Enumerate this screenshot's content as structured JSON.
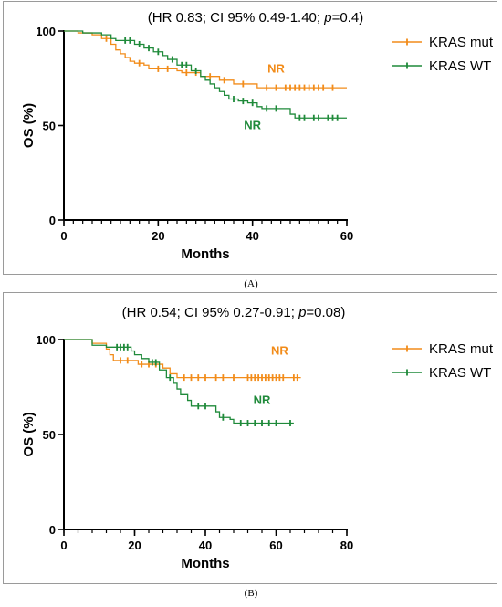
{
  "chart_data": [
    {
      "type": "line",
      "panel": "A",
      "caption": "(A)",
      "title_prefix": "(HR 0.83; CI 95% 0.49-1.40; ",
      "title_p_symbol": "p",
      "title_suffix": "=0.4)",
      "xlabel": "Months",
      "ylabel": "OS (%)",
      "xlim": [
        0,
        60
      ],
      "ylim": [
        0,
        100
      ],
      "xticks": [
        0,
        20,
        40,
        60
      ],
      "yticks": [
        0,
        50,
        100
      ],
      "x_minor_step": 2,
      "legend_position": "top-right",
      "series": [
        {
          "name": "KRAS mut",
          "color": "#F28C1A",
          "label": "NR",
          "label_at": [
            45,
            78
          ],
          "steps": [
            [
              0,
              100
            ],
            [
              3,
              99
            ],
            [
              6,
              98
            ],
            [
              8,
              96
            ],
            [
              10,
              93
            ],
            [
              11,
              90
            ],
            [
              12,
              88
            ],
            [
              13,
              86
            ],
            [
              14,
              84
            ],
            [
              15,
              83
            ],
            [
              17,
              82
            ],
            [
              18,
              80
            ],
            [
              24,
              79
            ],
            [
              25,
              78
            ],
            [
              29,
              76
            ],
            [
              33,
              74
            ],
            [
              36,
              72
            ],
            [
              41,
              70
            ],
            [
              60,
              70
            ]
          ],
          "censor": [
            9,
            16,
            20,
            22,
            26,
            28,
            31,
            34,
            38,
            43,
            45,
            47,
            48,
            49,
            50,
            51,
            52,
            53,
            54,
            55,
            57
          ]
        },
        {
          "name": "KRAS WT",
          "color": "#1F8A3A",
          "label": "NR",
          "label_at": [
            40,
            48
          ],
          "steps": [
            [
              0,
              100
            ],
            [
              4,
              99
            ],
            [
              8,
              98
            ],
            [
              10,
              96
            ],
            [
              11,
              95
            ],
            [
              15,
              93
            ],
            [
              17,
              91
            ],
            [
              19,
              89
            ],
            [
              21,
              87
            ],
            [
              22,
              85
            ],
            [
              24,
              82
            ],
            [
              27,
              79
            ],
            [
              29,
              76
            ],
            [
              30,
              74
            ],
            [
              31,
              72
            ],
            [
              32,
              70
            ],
            [
              33,
              68
            ],
            [
              34,
              66
            ],
            [
              35,
              64
            ],
            [
              37,
              63
            ],
            [
              39,
              62
            ],
            [
              41,
              60
            ],
            [
              42,
              59
            ],
            [
              48,
              56
            ],
            [
              49,
              54
            ],
            [
              60,
              54
            ]
          ],
          "censor": [
            13,
            14,
            16,
            18,
            20,
            23,
            25,
            26,
            28,
            36,
            38,
            40,
            43,
            45,
            50,
            51,
            53,
            54,
            56,
            57,
            58
          ]
        }
      ]
    },
    {
      "type": "line",
      "panel": "B",
      "caption": "(B)",
      "title_prefix": "(HR 0.54; CI 95% 0.27-0.91; ",
      "title_p_symbol": "p",
      "title_suffix": "=0.08)",
      "xlabel": "Months",
      "ylabel": "OS (%)",
      "xlim": [
        0,
        80
      ],
      "ylim": [
        0,
        100
      ],
      "xticks": [
        0,
        20,
        40,
        60,
        80
      ],
      "yticks": [
        0,
        50,
        100
      ],
      "x_minor_step": 4,
      "legend_position": "top-right",
      "series": [
        {
          "name": "KRAS mut",
          "color": "#F28C1A",
          "label": "NR",
          "label_at": [
            61,
            92
          ],
          "steps": [
            [
              0,
              100
            ],
            [
              8,
              98
            ],
            [
              12,
              95
            ],
            [
              13,
              92
            ],
            [
              14,
              89
            ],
            [
              20,
              89
            ],
            [
              21,
              87
            ],
            [
              28,
              85
            ],
            [
              30,
              82
            ],
            [
              32,
              80
            ],
            [
              48,
              80
            ],
            [
              50,
              80
            ],
            [
              67,
              80
            ]
          ],
          "censor": [
            16,
            18,
            22,
            24,
            26,
            34,
            36,
            38,
            40,
            43,
            45,
            48,
            52,
            53,
            54,
            55,
            56,
            57,
            58,
            59,
            60,
            61,
            62,
            65,
            66
          ]
        },
        {
          "name": "KRAS WT",
          "color": "#1F8A3A",
          "label": "NR",
          "label_at": [
            56,
            66
          ],
          "steps": [
            [
              0,
              100
            ],
            [
              8,
              97
            ],
            [
              12,
              96
            ],
            [
              14,
              96
            ],
            [
              19,
              94
            ],
            [
              20,
              92
            ],
            [
              22,
              90
            ],
            [
              24,
              88
            ],
            [
              27,
              84
            ],
            [
              29,
              80
            ],
            [
              31,
              77
            ],
            [
              32,
              74
            ],
            [
              33,
              71
            ],
            [
              35,
              68
            ],
            [
              36,
              65
            ],
            [
              43,
              62
            ],
            [
              44,
              59
            ],
            [
              47,
              58
            ],
            [
              48,
              56
            ],
            [
              65,
              56
            ]
          ],
          "censor": [
            15,
            16,
            17,
            18,
            25,
            26,
            30,
            38,
            40,
            45,
            50,
            52,
            54,
            56,
            58,
            60,
            64
          ]
        }
      ]
    }
  ]
}
